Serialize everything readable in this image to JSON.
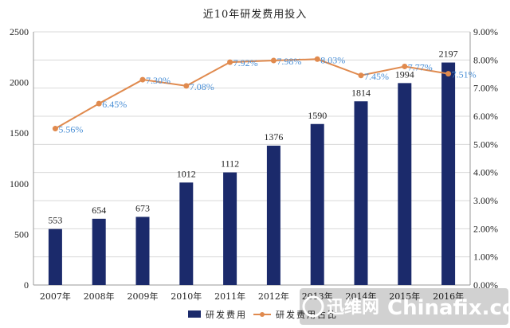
{
  "chart_data": {
    "type": "bar+line",
    "title": "近10年研发费用投入",
    "categories": [
      "2007年",
      "2008年",
      "2009年",
      "2010年",
      "2011年",
      "2012年",
      "2013年",
      "2014年",
      "2015年",
      "2016年"
    ],
    "series": [
      {
        "name": "研发费用",
        "type": "bar",
        "axis": "left",
        "color": "#1b2a6b",
        "values": [
          553,
          654,
          673,
          1012,
          1112,
          1376,
          1590,
          1814,
          1994,
          2197
        ],
        "labels": [
          "553",
          "654",
          "673",
          "1012",
          "1112",
          "1376",
          "1590",
          "1814",
          "1994",
          "2197"
        ]
      },
      {
        "name": "研发费用占比",
        "type": "line",
        "axis": "right",
        "color": "#e08a4e",
        "values": [
          5.56,
          6.45,
          7.3,
          7.08,
          7.92,
          7.98,
          8.03,
          7.45,
          7.77,
          7.51
        ],
        "labels": [
          "5.56%",
          "6.45%",
          "7.30%",
          "7.08%",
          "7.92%",
          "7.98%",
          "8.03%",
          "7.45%",
          "7.77%",
          "7.51%"
        ]
      }
    ],
    "y_left": {
      "min": 0,
      "max": 2500,
      "ticks": [
        "0",
        "500",
        "1000",
        "1500",
        "2000",
        "2500"
      ]
    },
    "y_right": {
      "min": 0,
      "max": 9,
      "ticks": [
        "0.00%",
        "1.00%",
        "2.00%",
        "3.00%",
        "4.00%",
        "5.00%",
        "6.00%",
        "7.00%",
        "8.00%",
        "9.00%"
      ]
    },
    "grid": true,
    "legend": {
      "position": "bottom",
      "entries": [
        "研发费用",
        "研发费用占比"
      ]
    }
  },
  "watermark": {
    "cn_text": "迅维网",
    "en_text": "Chinafix.com"
  }
}
